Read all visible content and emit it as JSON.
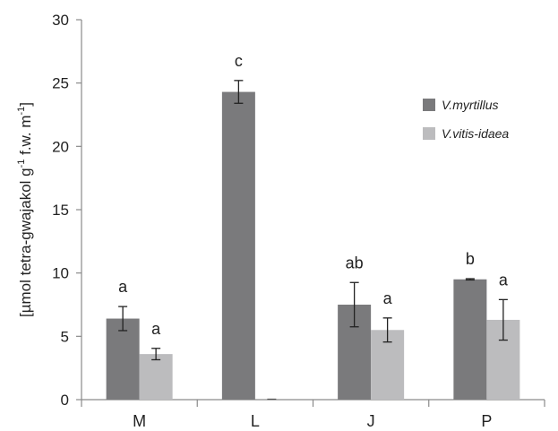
{
  "chart_data": {
    "type": "bar",
    "title": "",
    "xlabel": "",
    "ylabel": {
      "parts": [
        "[µmol tetra-gwajakol g",
        "-1",
        " f.w. m",
        "-1",
        "]"
      ]
    },
    "ylim": [
      0,
      30
    ],
    "yticks": [
      0,
      5,
      10,
      15,
      20,
      25,
      30
    ],
    "categories": [
      "M",
      "L",
      "J",
      "P"
    ],
    "series": [
      {
        "name": "V.myrtillus",
        "color": "#7a7a7c",
        "values": [
          6.4,
          24.3,
          7.5,
          9.5
        ],
        "errors": [
          0.95,
          0.9,
          1.75,
          0.05
        ],
        "labels": [
          "a",
          "c",
          "ab",
          "b"
        ]
      },
      {
        "name": "V.vitis-idaea",
        "color": "#bcbcbe",
        "values": [
          3.6,
          0,
          5.5,
          6.3
        ],
        "errors": [
          0.45,
          0,
          0.95,
          1.6
        ],
        "labels": [
          "a",
          "",
          "a",
          "a"
        ]
      }
    ],
    "legend": "top-right",
    "grid": false
  }
}
